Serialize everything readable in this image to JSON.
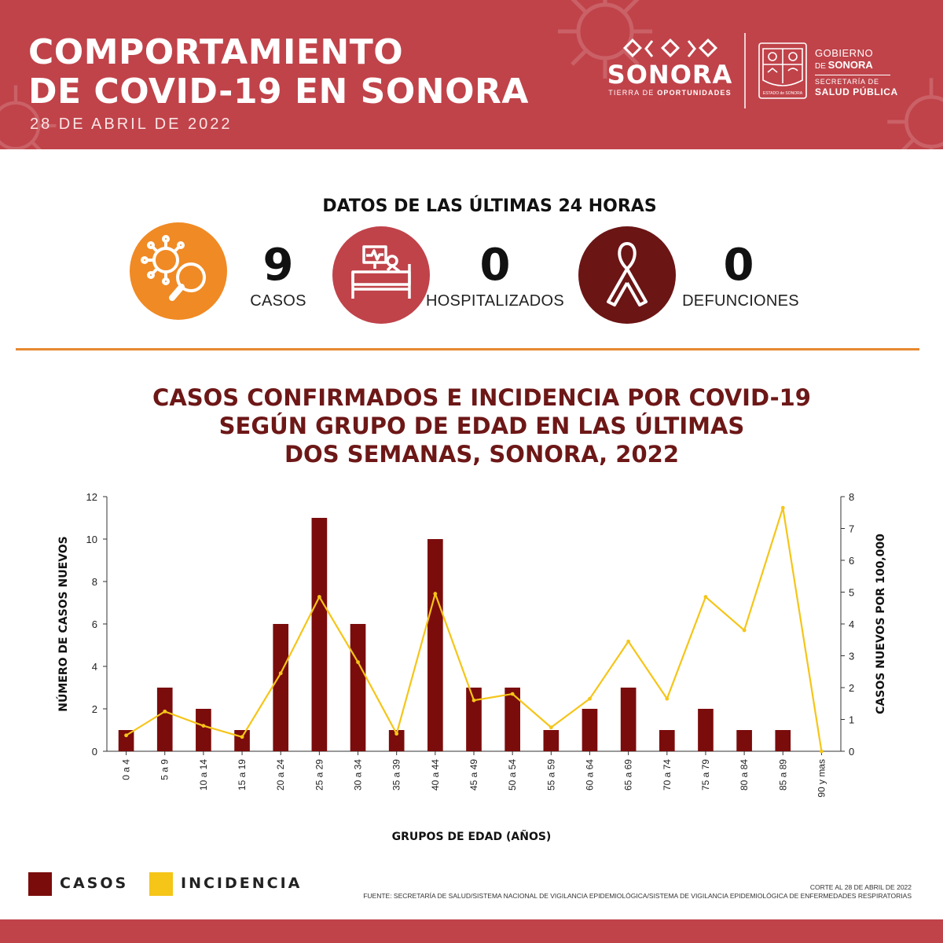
{
  "header": {
    "title_line1": "COMPORTAMIENTO",
    "title_line2": "DE COVID-19 EN SONORA",
    "date": "28 DE ABRIL DE 2022",
    "logo_word": "SONORA",
    "logo_tagline_plain": "TIERRA DE ",
    "logo_tagline_bold": "OPORTUNIDADES",
    "gob_line1": "GOBIERNO",
    "gob_line2_small": "DE ",
    "gob_line2_bold": "SONORA",
    "gob_line3": "SECRETARÍA DE",
    "gob_line4": "SALUD PÚBLICA",
    "seal_text": "ESTADO de SONORA"
  },
  "stats": {
    "title": "DATOS DE LAS ÚLTIMAS 24 HORAS",
    "items": [
      {
        "value": "9",
        "label": "CASOS",
        "icon": "virus-magnifier-icon",
        "color": "#f08a24"
      },
      {
        "value": "0",
        "label": "HOSPITALIZADOS",
        "icon": "hospital-bed-icon",
        "color": "#c0434a"
      },
      {
        "value": "0",
        "label": "DEFUNCIONES",
        "icon": "ribbon-icon",
        "color": "#6b1515"
      }
    ]
  },
  "colors": {
    "header": "#c0434a",
    "divider": "#e7892f",
    "bars": "#7b0c0c",
    "line": "#f5c518",
    "chart_title": "#6d1717"
  },
  "chart_data": {
    "type": "bar",
    "title_lines": [
      "CASOS CONFIRMADOS E INCIDENCIA POR COVID-19",
      "SEGÚN GRUPO DE EDAD EN LAS ÚLTIMAS",
      "DOS SEMANAS, SONORA, 2022"
    ],
    "categories": [
      "0 a 4",
      "5 a 9",
      "10 a 14",
      "15 a 19",
      "20 a 24",
      "25 a 29",
      "30 a 34",
      "35 a 39",
      "40 a 44",
      "45 a 49",
      "50 a 54",
      "55 a 59",
      "60 a 64",
      "65 a 69",
      "70 a 74",
      "75 a 79",
      "80 a 84",
      "85 a 89",
      "90 y mas"
    ],
    "series": [
      {
        "name": "CASOS",
        "type": "bar",
        "axis": "left",
        "values": [
          1,
          3,
          2,
          1,
          6,
          11,
          6,
          1,
          10,
          3,
          3,
          1,
          2,
          3,
          1,
          2,
          1,
          1,
          0
        ]
      },
      {
        "name": "INCIDENCIA",
        "type": "line",
        "axis": "right",
        "values": [
          0.5,
          1.25,
          0.8,
          0.45,
          2.45,
          4.85,
          2.8,
          0.55,
          4.95,
          1.6,
          1.8,
          0.75,
          1.65,
          3.45,
          1.65,
          4.85,
          3.8,
          7.65,
          0
        ]
      }
    ],
    "xlabel": "GRUPOS DE EDAD (AÑOS)",
    "ylabel": "NÚMERO DE CASOS NUEVOS",
    "y2label": "CASOS NUEVOS POR 100,000",
    "ylim": [
      0,
      12
    ],
    "y2lim": [
      0,
      8
    ],
    "yticks": [
      0,
      2,
      4,
      6,
      8,
      10,
      12
    ],
    "y2ticks": [
      0,
      1,
      2,
      3,
      4,
      5,
      6,
      7,
      8
    ],
    "legend": "bottom-left",
    "grid": false
  },
  "legend": [
    {
      "label": "CASOS",
      "color": "#7b0c0c"
    },
    {
      "label": "INCIDENCIA",
      "color": "#f5c518"
    }
  ],
  "source": {
    "cutoff": "CORTE AL 28 DE ABRIL DE 2022",
    "text": "FUENTE: SECRETARÍA DE SALUD/SISTEMA NACIONAL DE VIGILANCIA EPIDEMIOLÓGICA/SISTEMA DE VIGILANCIA EPIDEMIOLÓGICA DE ENFERMEDADES RESPIRATORIAS"
  }
}
